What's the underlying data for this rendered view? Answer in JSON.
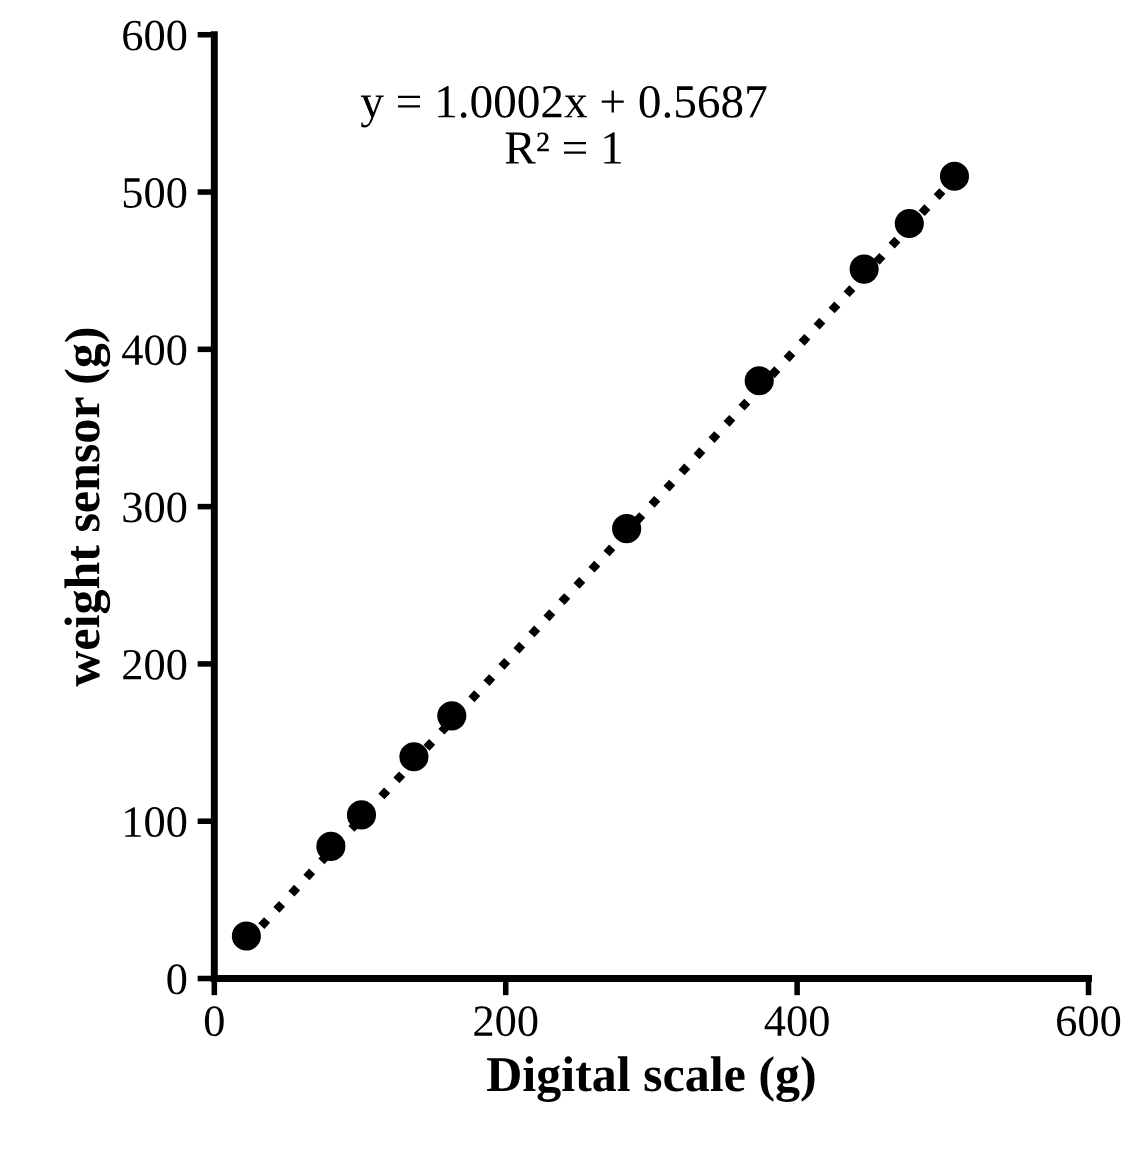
{
  "chart_data": {
    "type": "scatter",
    "xlabel": "Digital scale (g)",
    "ylabel": "weight sensor (g)",
    "xlim": [
      0,
      600
    ],
    "xticks": [
      0,
      200,
      400,
      600
    ],
    "ylim": [
      0,
      600
    ],
    "yticks": [
      0,
      100,
      200,
      300,
      400,
      500,
      600
    ],
    "grid": false,
    "series": [
      {
        "color": "#000000",
        "marker": "circle",
        "x": [
          22,
          80,
          101,
          137,
          163,
          283,
          374,
          446,
          477,
          508
        ],
        "values": [
          27,
          84,
          104,
          141,
          167,
          286,
          380,
          451,
          480,
          510
        ]
      },
      {
        "type": "line",
        "color": "#000000",
        "line_style": "dotted",
        "marker": "none",
        "x": [
          22,
          508
        ],
        "values": [
          23,
          509
        ]
      }
    ],
    "annotations": [
      "y = 1.0002x + 0.5687\nR² = 1"
    ]
  }
}
